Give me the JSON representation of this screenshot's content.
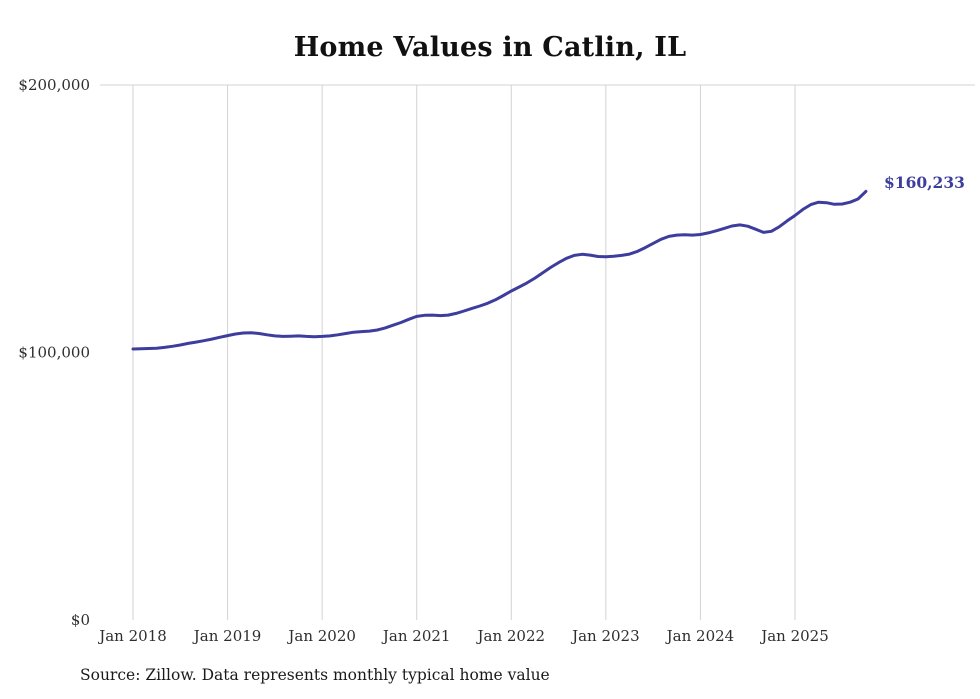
{
  "title": "Home Values in Catlin, IL",
  "source_note": "Source: Zillow. Data represents monthly typical home value",
  "colors": {
    "line": "#3d3d9e",
    "end_label": "#3d3d9e",
    "gridline": "#d3d3d3",
    "axis_text": "#2e2e2e"
  },
  "chart_data": {
    "type": "line",
    "title": "Home Values in Catlin, IL",
    "xlabel": "",
    "ylabel": "",
    "ylim": [
      0,
      200000
    ],
    "grid": "vertical",
    "legend": false,
    "x_tick_labels": [
      "Jan 2018",
      "Jan 2019",
      "Jan 2020",
      "Jan 2021",
      "Jan 2022",
      "Jan 2023",
      "Jan 2024",
      "Jan 2025"
    ],
    "y_ticks": [
      {
        "value": 0,
        "label": "$0"
      },
      {
        "value": 100000,
        "label": "$100,000"
      },
      {
        "value": 200000,
        "label": "$200,000"
      }
    ],
    "series": [
      {
        "name": "Monthly typical home value",
        "unit": "USD",
        "cadence": "monthly",
        "months": [
          "2018-01",
          "2018-02",
          "2018-03",
          "2018-04",
          "2018-05",
          "2018-06",
          "2018-07",
          "2018-08",
          "2018-09",
          "2018-10",
          "2018-11",
          "2018-12",
          "2019-01",
          "2019-02",
          "2019-03",
          "2019-04",
          "2019-05",
          "2019-06",
          "2019-07",
          "2019-08",
          "2019-09",
          "2019-10",
          "2019-11",
          "2019-12",
          "2020-01",
          "2020-02",
          "2020-03",
          "2020-04",
          "2020-05",
          "2020-06",
          "2020-07",
          "2020-08",
          "2020-09",
          "2020-10",
          "2020-11",
          "2020-12",
          "2021-01",
          "2021-02",
          "2021-03",
          "2021-04",
          "2021-05",
          "2021-06",
          "2021-07",
          "2021-08",
          "2021-09",
          "2021-10",
          "2021-11",
          "2021-12",
          "2022-01",
          "2022-02",
          "2022-03",
          "2022-04",
          "2022-05",
          "2022-06",
          "2022-07",
          "2022-08",
          "2022-09",
          "2022-10",
          "2022-11",
          "2022-12",
          "2023-01",
          "2023-02",
          "2023-03",
          "2023-04",
          "2023-05",
          "2023-06",
          "2023-07",
          "2023-08",
          "2023-09",
          "2023-10",
          "2023-11",
          "2023-12",
          "2024-01",
          "2024-02",
          "2024-03",
          "2024-04",
          "2024-05",
          "2024-06",
          "2024-07",
          "2024-08",
          "2024-09",
          "2024-10",
          "2024-11",
          "2024-12",
          "2025-01",
          "2025-02",
          "2025-03",
          "2025-04",
          "2025-05",
          "2025-06",
          "2025-07",
          "2025-08",
          "2025-09",
          "2025-10"
        ],
        "values": [
          101300,
          101400,
          101500,
          101600,
          101900,
          102300,
          102800,
          103400,
          103900,
          104400,
          105000,
          105700,
          106300,
          106900,
          107300,
          107400,
          107100,
          106600,
          106200,
          106000,
          106100,
          106200,
          106000,
          105900,
          106000,
          106200,
          106600,
          107100,
          107600,
          107800,
          108000,
          108400,
          109200,
          110200,
          111200,
          112400,
          113500,
          113900,
          114000,
          113800,
          114000,
          114600,
          115500,
          116500,
          117400,
          118400,
          119700,
          121300,
          123000,
          124500,
          126000,
          127800,
          129800,
          131800,
          133600,
          135200,
          136300,
          136700,
          136400,
          135900,
          135800,
          136000,
          136300,
          136800,
          137800,
          139200,
          140800,
          142300,
          143400,
          143900,
          144000,
          143900,
          144100,
          144700,
          145500,
          146400,
          147300,
          147700,
          147200,
          146100,
          144900,
          145300,
          147000,
          149200,
          151200,
          153500,
          155300,
          156200,
          156000,
          155400,
          155500,
          156200,
          157400,
          160233
        ]
      }
    ],
    "last_value": 160233,
    "last_value_label": "$160,233"
  }
}
